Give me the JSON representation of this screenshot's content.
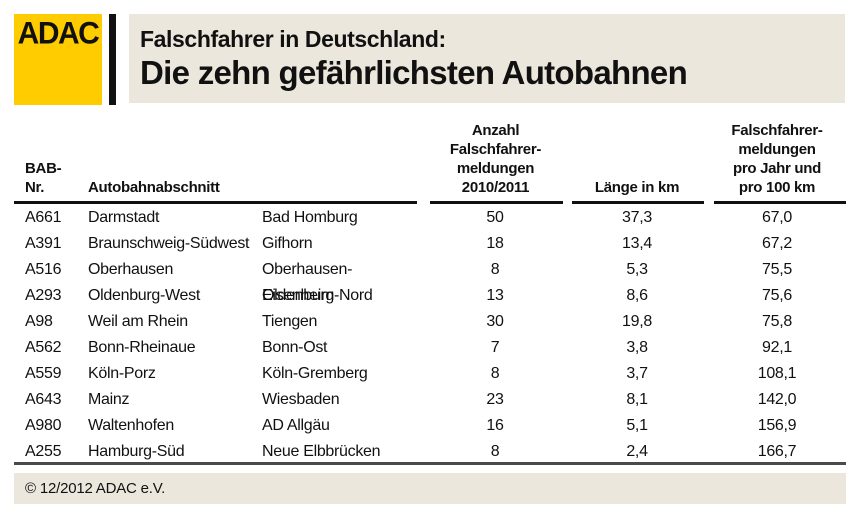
{
  "header": {
    "logo_text": "ADAC",
    "title_line1": "Falschfahrer in Deutschland:",
    "title_line2": "Die zehn gefährlichsten Autobahnen"
  },
  "table": {
    "headers": {
      "bab": "BAB-\nNr.",
      "abschnitt": "Autobahnabschnitt",
      "anzahl": "Anzahl\nFalschfahrer-\nmeldungen\n2010/2011",
      "laenge": "Länge in km",
      "pro": "Falschfahrer-\nmeldungen\npro Jahr und\npro 100 km"
    },
    "rows": [
      [
        "A661",
        "Darmstadt",
        "Bad Homburg",
        "50",
        "37,3",
        "67,0"
      ],
      [
        "A391",
        "Braunschweig-Südwest",
        "Gifhorn",
        "18",
        "13,4",
        "67,2"
      ],
      [
        "A516",
        "Oberhausen",
        "Oberhausen-Eisenheim",
        "8",
        "5,3",
        "75,5"
      ],
      [
        "A293",
        "Oldenburg-West",
        "Oldenburg-Nord",
        "13",
        "8,6",
        "75,6"
      ],
      [
        "A98",
        "Weil am Rhein",
        "Tiengen",
        "30",
        "19,8",
        "75,8"
      ],
      [
        "A562",
        "Bonn-Rheinaue",
        "Bonn-Ost",
        "7",
        "3,8",
        "92,1"
      ],
      [
        "A559",
        "Köln-Porz",
        "Köln-Gremberg",
        "8",
        "3,7",
        "108,1"
      ],
      [
        "A643",
        "Mainz",
        "Wiesbaden",
        "23",
        "8,1",
        "142,0"
      ],
      [
        "A980",
        "Waltenhofen",
        "AD Allgäu",
        "16",
        "5,1",
        "156,9"
      ],
      [
        "A255",
        "Hamburg-Süd",
        "Neue Elbbrücken",
        "8",
        "2,4",
        "166,7"
      ]
    ]
  },
  "footer": {
    "copyright": "© 12/2012 ADAC e.V."
  },
  "colors": {
    "adac_yellow": "#FFCC00",
    "beige": "#EBE7DC",
    "text": "#111111",
    "rule_header": "#111111",
    "rule_bottom": "#4A4A4A"
  },
  "chart_data": {
    "type": "table",
    "title": "Falschfahrer in Deutschland: Die zehn gefährlichsten Autobahnen",
    "columns": [
      "BAB-Nr.",
      "Autobahnabschnitt (von)",
      "Autobahnabschnitt (bis)",
      "Anzahl Falschfahrermeldungen 2010/2011",
      "Länge in km",
      "Falschfahrermeldungen pro Jahr und pro 100 km"
    ],
    "rows": [
      [
        "A661",
        "Darmstadt",
        "Bad Homburg",
        50,
        37.3,
        67.0
      ],
      [
        "A391",
        "Braunschweig-Südwest",
        "Gifhorn",
        18,
        13.4,
        67.2
      ],
      [
        "A516",
        "Oberhausen",
        "Oberhausen-Eisenheim",
        8,
        5.3,
        75.5
      ],
      [
        "A293",
        "Oldenburg-West",
        "Oldenburg-Nord",
        13,
        8.6,
        75.6
      ],
      [
        "A98",
        "Weil am Rhein",
        "Tiengen",
        30,
        19.8,
        75.8
      ],
      [
        "A562",
        "Bonn-Rheinaue",
        "Bonn-Ost",
        7,
        3.8,
        92.1
      ],
      [
        "A559",
        "Köln-Porz",
        "Köln-Gremberg",
        8,
        3.7,
        108.1
      ],
      [
        "A643",
        "Mainz",
        "Wiesbaden",
        23,
        8.1,
        142.0
      ],
      [
        "A980",
        "Waltenhofen",
        "AD Allgäu",
        16,
        5.1,
        156.9
      ],
      [
        "A255",
        "Hamburg-Süd",
        "Neue Elbbrücken",
        8,
        2.4,
        166.7
      ]
    ],
    "source_note": "© 12/2012 ADAC e.V."
  }
}
